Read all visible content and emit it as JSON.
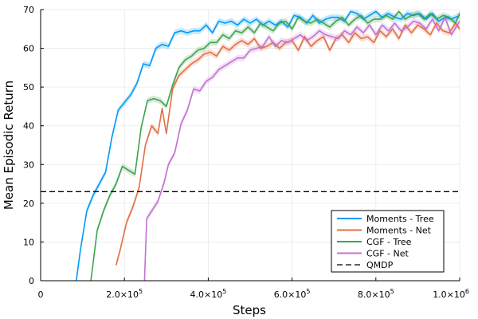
{
  "chart_data": {
    "type": "line",
    "xlabel": "Steps",
    "ylabel": "Mean Episodic Return",
    "xlim": [
      0,
      1000000
    ],
    "ylim": [
      0,
      70
    ],
    "grid": true,
    "legend_position": "bottom-right",
    "x_ticks": [
      {
        "value": 0,
        "mantissa": "0",
        "exp": ""
      },
      {
        "value": 200000,
        "mantissa": "2.0×10",
        "exp": "5"
      },
      {
        "value": 400000,
        "mantissa": "4.0×10",
        "exp": "5"
      },
      {
        "value": 600000,
        "mantissa": "6.0×10",
        "exp": "5"
      },
      {
        "value": 800000,
        "mantissa": "8.0×10",
        "exp": "5"
      },
      {
        "value": 1000000,
        "mantissa": "1.0×10",
        "exp": "6"
      }
    ],
    "y_ticks": [
      "0",
      "10",
      "20",
      "30",
      "40",
      "50",
      "60",
      "70"
    ],
    "series": [
      {
        "name": "Moments - Tree",
        "color": "#009af9",
        "x": [
          85000,
          95000,
          110000,
          125000,
          140000,
          155000,
          170000,
          185000,
          200000,
          215000,
          230000,
          245000,
          260000,
          275000,
          290000,
          305000,
          320000,
          335000,
          350000,
          365000,
          380000,
          395000,
          410000,
          425000,
          440000,
          455000,
          470000,
          485000,
          500000,
          515000,
          530000,
          545000,
          560000,
          575000,
          590000,
          605000,
          620000,
          635000,
          650000,
          665000,
          680000,
          695000,
          710000,
          725000,
          740000,
          755000,
          770000,
          785000,
          800000,
          815000,
          830000,
          845000,
          860000,
          875000,
          890000,
          905000,
          920000,
          935000,
          950000,
          965000,
          980000,
          1000000
        ],
        "y": [
          -2,
          8,
          18,
          22,
          25,
          28,
          37,
          44,
          46,
          48,
          51,
          56,
          55.5,
          60,
          61,
          60.5,
          64,
          64.5,
          64,
          64.5,
          64.5,
          66,
          64,
          67,
          66.5,
          67,
          66,
          67.5,
          66.5,
          67.5,
          66,
          67,
          66,
          67,
          65.5,
          68.5,
          68,
          66.5,
          68.5,
          66.5,
          67.5,
          68,
          68,
          67,
          69.5,
          69,
          67.5,
          68.5,
          69.5,
          68,
          69,
          68,
          67.5,
          69,
          68.5,
          69,
          67.5,
          69,
          67,
          68,
          67.5,
          68.5
        ]
      },
      {
        "name": "Moments - Net",
        "color": "#e26f46",
        "x": [
          180000,
          190000,
          205000,
          220000,
          235000,
          250000,
          265000,
          280000,
          290000,
          300000,
          315000,
          330000,
          345000,
          360000,
          375000,
          390000,
          405000,
          420000,
          435000,
          450000,
          465000,
          480000,
          495000,
          510000,
          525000,
          540000,
          555000,
          570000,
          585000,
          600000,
          615000,
          630000,
          645000,
          660000,
          675000,
          690000,
          705000,
          720000,
          735000,
          750000,
          765000,
          780000,
          795000,
          810000,
          825000,
          840000,
          855000,
          870000,
          885000,
          900000,
          915000,
          930000,
          945000,
          960000,
          975000,
          990000,
          1000000
        ],
        "y": [
          4,
          8,
          15,
          19,
          24,
          35,
          40,
          38,
          44.5,
          38,
          49.5,
          53,
          54.5,
          56,
          57,
          58.5,
          59,
          58,
          60.5,
          59.5,
          61,
          62,
          61,
          62.5,
          60,
          60.5,
          61.5,
          60,
          61.5,
          62,
          59.5,
          63,
          60.5,
          62,
          63,
          59.5,
          62.5,
          63.5,
          61.5,
          64,
          62.5,
          63,
          61.5,
          64.5,
          63,
          65,
          62.5,
          66,
          64,
          66,
          65,
          63.5,
          66.5,
          64.5,
          64,
          66.5,
          65
        ]
      },
      {
        "name": "CGF - Tree",
        "color": "#3ea44e",
        "x": [
          120000,
          135000,
          150000,
          165000,
          180000,
          195000,
          210000,
          225000,
          240000,
          255000,
          270000,
          285000,
          300000,
          315000,
          330000,
          345000,
          360000,
          375000,
          390000,
          405000,
          420000,
          435000,
          450000,
          465000,
          480000,
          495000,
          510000,
          525000,
          540000,
          555000,
          570000,
          585000,
          600000,
          615000,
          630000,
          645000,
          660000,
          675000,
          690000,
          705000,
          720000,
          735000,
          750000,
          765000,
          780000,
          795000,
          810000,
          825000,
          840000,
          855000,
          870000,
          885000,
          900000,
          915000,
          930000,
          945000,
          960000,
          975000,
          990000,
          1000000
        ],
        "y": [
          0,
          13,
          18,
          22,
          25,
          29.5,
          28.5,
          27.5,
          39.5,
          46.5,
          47,
          46.5,
          45,
          50.5,
          55,
          57,
          58,
          59.5,
          60,
          61.5,
          61.5,
          63.5,
          62.5,
          64.5,
          64,
          65.5,
          64,
          66.5,
          65.5,
          64.5,
          66.5,
          67,
          65,
          68,
          67,
          66.5,
          67.5,
          66.5,
          65.5,
          67,
          68,
          66,
          67.5,
          68.5,
          66.5,
          67.5,
          67.5,
          68.5,
          67.5,
          69.5,
          67.5,
          68.5,
          69,
          67.5,
          69,
          67.5,
          68.5,
          68,
          66.5,
          69
        ]
      },
      {
        "name": "CGF - Net",
        "color": "#c271d2",
        "x": [
          248000,
          253000,
          265000,
          280000,
          295000,
          305000,
          320000,
          335000,
          350000,
          365000,
          380000,
          395000,
          410000,
          425000,
          440000,
          455000,
          470000,
          485000,
          500000,
          515000,
          530000,
          545000,
          560000,
          575000,
          590000,
          605000,
          620000,
          635000,
          650000,
          665000,
          680000,
          695000,
          710000,
          725000,
          740000,
          755000,
          770000,
          785000,
          800000,
          815000,
          830000,
          845000,
          860000,
          875000,
          890000,
          905000,
          920000,
          935000,
          950000,
          965000,
          980000,
          1000000
        ],
        "y": [
          0,
          16,
          18,
          20.5,
          25.5,
          30,
          33,
          40.5,
          44,
          49.5,
          49,
          51.5,
          52.5,
          54.5,
          55.5,
          56.5,
          57.5,
          57.5,
          59.5,
          60,
          60.5,
          63,
          60.5,
          62,
          61.5,
          62.5,
          63.5,
          62,
          63,
          64.5,
          63.5,
          63,
          62.5,
          64.5,
          63.5,
          65.5,
          64,
          66,
          63.5,
          66,
          64.5,
          66.5,
          64.5,
          65.5,
          67,
          66.5,
          65,
          67.5,
          64.5,
          68,
          63.5,
          67
        ]
      },
      {
        "name": "QMDP",
        "color": "#000000",
        "dashed": true,
        "x": [
          0,
          1000000
        ],
        "y": [
          23,
          23
        ]
      }
    ]
  }
}
